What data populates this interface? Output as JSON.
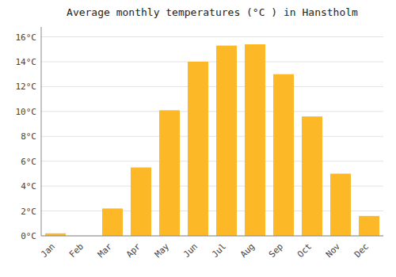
{
  "chart_data": {
    "type": "bar",
    "title": "Average monthly temperatures (°C ) in Hanstholm",
    "categories": [
      "Jan",
      "Feb",
      "Mar",
      "Apr",
      "May",
      "Jun",
      "Jul",
      "Aug",
      "Sep",
      "Oct",
      "Nov",
      "Dec"
    ],
    "values": [
      0.2,
      0.0,
      2.2,
      5.5,
      10.1,
      14.0,
      15.3,
      15.4,
      13.0,
      9.6,
      5.0,
      1.6
    ],
    "color": "#FDB827",
    "ylim": [
      0,
      16.8
    ],
    "yticks": [
      {
        "value": 0,
        "label": "0°C"
      },
      {
        "value": 2,
        "label": "2°C"
      },
      {
        "value": 4,
        "label": "4°C"
      },
      {
        "value": 6,
        "label": "6°C"
      },
      {
        "value": 8,
        "label": "8°C"
      },
      {
        "value": 10,
        "label": "10°C"
      },
      {
        "value": 12,
        "label": "12°C"
      },
      {
        "value": 14,
        "label": "14°C"
      },
      {
        "value": 16,
        "label": "16°C"
      }
    ],
    "grid": true
  }
}
